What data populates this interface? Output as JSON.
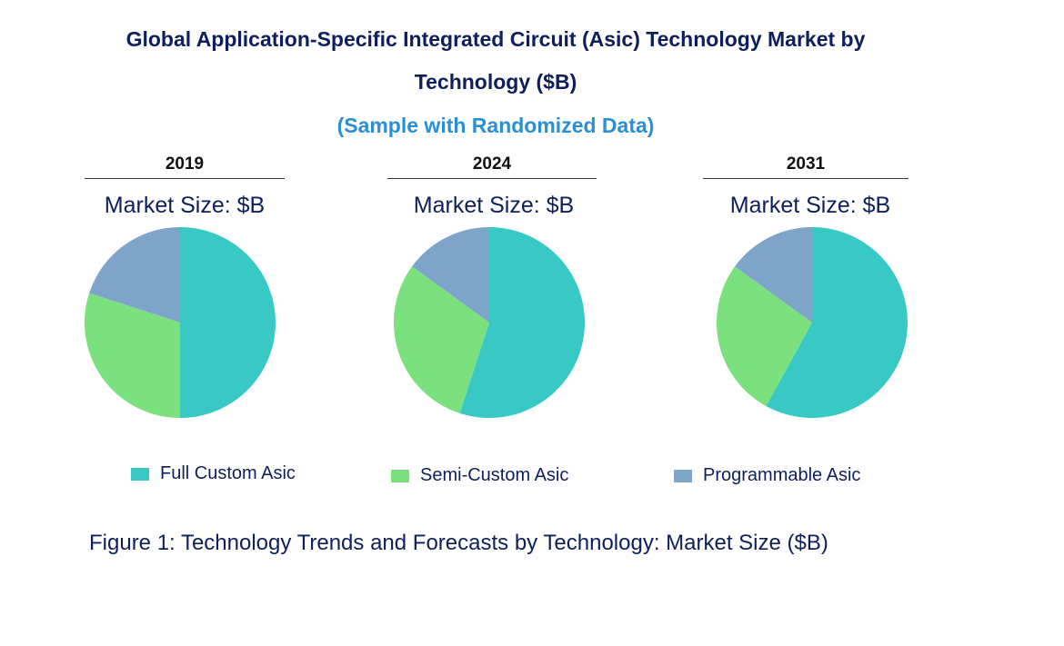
{
  "chart_data": {
    "type": "pie",
    "title": "Global Application-Specific Integrated Circuit (Asic) Technology Market by Technology ($B)",
    "title_line1": "Global Application-Specific Integrated Circuit (Asic) Technology Market by",
    "title_line2": "Technology ($B)",
    "subtitle": "(Sample with Randomized Data)",
    "caption": "Figure 1: Technology Trends and Forecasts by Technology: Market Size ($B)",
    "market_size_label": "Market Size: $B",
    "legend_placement": "bottom",
    "categories": [
      "Full Custom Asic",
      "Semi-Custom Asic",
      "Programmable Asic"
    ],
    "colors": [
      "#38c9c5",
      "#7ae17e",
      "#7fa4c9"
    ],
    "pies": [
      {
        "year": "2019",
        "values": [
          50,
          30,
          20
        ]
      },
      {
        "year": "2024",
        "values": [
          55,
          30,
          15
        ]
      },
      {
        "year": "2031",
        "values": [
          58,
          27,
          15
        ]
      }
    ]
  }
}
